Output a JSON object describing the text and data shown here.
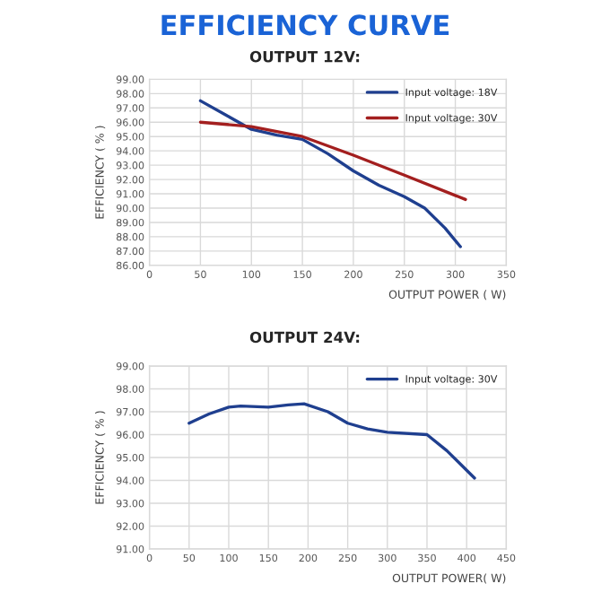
{
  "chart_data": [
    {
      "type": "line",
      "title": "EFFICIENCY CURVE",
      "subtitle": "OUTPUT 12V:",
      "xlabel": "OUTPUT POWER ( W)",
      "ylabel": "EFFICIENCY ( % )",
      "xlim": [
        0,
        350
      ],
      "xticks": [
        0,
        50,
        100,
        150,
        200,
        250,
        300,
        350
      ],
      "ylim": [
        86,
        99
      ],
      "yticks": [
        {
          "value": 86,
          "label": "86.00"
        },
        {
          "value": 87,
          "label": "87.00"
        },
        {
          "value": 88,
          "label": "88.00"
        },
        {
          "value": 89,
          "label": "89.00"
        },
        {
          "value": 90,
          "label": "90.00"
        },
        {
          "value": 91,
          "label": "91.00"
        },
        {
          "value": 92,
          "label": "92.00"
        },
        {
          "value": 93,
          "label": "93.00"
        },
        {
          "value": 94,
          "label": "94.00"
        },
        {
          "value": 95,
          "label": "95.00"
        },
        {
          "value": 96,
          "label": "96.00"
        },
        {
          "value": 97,
          "label": "97.00"
        },
        {
          "value": 98,
          "label": "98.00"
        },
        {
          "value": 99,
          "label": "99.00"
        }
      ],
      "grid": true,
      "legend": "top right",
      "marker": "none",
      "line_style": "solid",
      "series": [
        {
          "name": "Input voltage: 18V",
          "color": "#1f3f8f",
          "x": [
            50,
            75,
            100,
            125,
            150,
            175,
            200,
            225,
            250,
            270,
            290,
            305
          ],
          "values": [
            97.5,
            96.5,
            95.5,
            95.1,
            94.8,
            93.8,
            92.6,
            91.6,
            90.8,
            90.0,
            88.6,
            87.3
          ]
        },
        {
          "name": "Input voltage: 30V",
          "color": "#a31f1f",
          "x": [
            50,
            100,
            150,
            200,
            250,
            310
          ],
          "values": [
            96.0,
            95.7,
            95.0,
            93.7,
            92.3,
            90.6
          ]
        }
      ]
    },
    {
      "type": "line",
      "title": "OUTPUT 24V:",
      "xlabel": "OUTPUT POWER( W)",
      "ylabel": "EFFICIENCY ( % )",
      "xlim": [
        0,
        450
      ],
      "xticks": [
        0,
        50,
        100,
        150,
        200,
        250,
        300,
        350,
        400,
        450
      ],
      "ylim": [
        91,
        99
      ],
      "yticks": [
        {
          "value": 91,
          "label": "91.00"
        },
        {
          "value": 92,
          "label": "92.00"
        },
        {
          "value": 93,
          "label": "93.00"
        },
        {
          "value": 94,
          "label": "94.00"
        },
        {
          "value": 95,
          "label": "95.00"
        },
        {
          "value": 96,
          "label": "96.00"
        },
        {
          "value": 97,
          "label": "97.00"
        },
        {
          "value": 98,
          "label": "98.00"
        },
        {
          "value": 99,
          "label": "99.00"
        }
      ],
      "grid": true,
      "legend": "top right",
      "marker": "none",
      "line_style": "solid",
      "series": [
        {
          "name": "Input voltage: 30V",
          "color": "#1f3f8f",
          "x": [
            50,
            75,
            100,
            115,
            150,
            175,
            195,
            225,
            250,
            275,
            300,
            350,
            375,
            410
          ],
          "values": [
            96.5,
            96.9,
            97.2,
            97.25,
            97.2,
            97.3,
            97.35,
            97.0,
            96.5,
            96.25,
            96.1,
            96.0,
            95.3,
            94.1
          ]
        }
      ]
    }
  ]
}
